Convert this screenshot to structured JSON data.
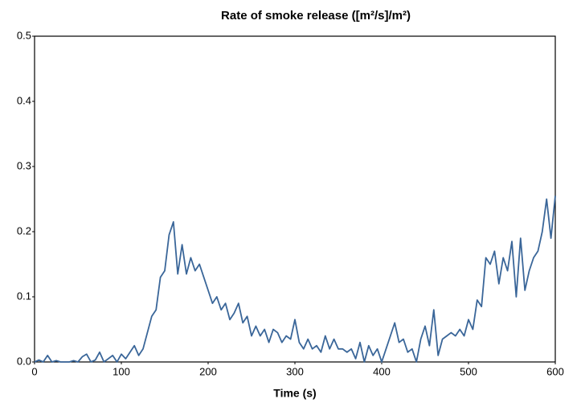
{
  "chart_data": {
    "type": "line",
    "title": "Rate of smoke release ([m²/s]/m²)",
    "x_label": "Time (s)",
    "x": [
      0,
      5,
      10,
      15,
      20,
      25,
      30,
      35,
      40,
      45,
      50,
      55,
      60,
      65,
      70,
      75,
      80,
      85,
      90,
      95,
      100,
      105,
      110,
      115,
      120,
      125,
      130,
      135,
      140,
      145,
      150,
      155,
      160,
      165,
      170,
      175,
      180,
      185,
      190,
      195,
      200,
      205,
      210,
      215,
      220,
      225,
      230,
      235,
      240,
      245,
      250,
      255,
      260,
      265,
      270,
      275,
      280,
      285,
      290,
      295,
      300,
      305,
      310,
      315,
      320,
      325,
      330,
      335,
      340,
      345,
      350,
      355,
      360,
      365,
      370,
      375,
      380,
      385,
      390,
      395,
      400,
      405,
      410,
      415,
      420,
      425,
      430,
      435,
      440,
      445,
      450,
      455,
      460,
      465,
      470,
      475,
      480,
      485,
      490,
      495,
      500,
      505,
      510,
      515,
      520,
      525,
      530,
      535,
      540,
      545,
      550,
      555,
      560,
      565,
      570,
      575,
      580,
      585,
      590,
      595,
      600
    ],
    "series": [
      {
        "color": "#3a6699",
        "values": [
          0.0,
          0.003,
          0.0,
          0.01,
          0.0,
          0.002,
          0.0,
          0.0,
          0.0,
          0.002,
          0.0,
          0.008,
          0.012,
          0.0,
          0.003,
          0.015,
          0.0,
          0.005,
          0.01,
          0.0,
          0.012,
          0.005,
          0.015,
          0.025,
          0.01,
          0.02,
          0.045,
          0.07,
          0.08,
          0.13,
          0.14,
          0.195,
          0.215,
          0.135,
          0.18,
          0.135,
          0.16,
          0.14,
          0.15,
          0.13,
          0.11,
          0.09,
          0.1,
          0.08,
          0.09,
          0.065,
          0.075,
          0.09,
          0.06,
          0.07,
          0.04,
          0.055,
          0.04,
          0.05,
          0.03,
          0.05,
          0.045,
          0.03,
          0.04,
          0.035,
          0.065,
          0.03,
          0.02,
          0.035,
          0.02,
          0.025,
          0.015,
          0.04,
          0.02,
          0.035,
          0.02,
          0.02,
          0.015,
          0.02,
          0.005,
          0.03,
          0.0,
          0.025,
          0.01,
          0.02,
          0.0,
          0.02,
          0.04,
          0.06,
          0.03,
          0.035,
          0.015,
          0.02,
          0.0,
          0.035,
          0.055,
          0.025,
          0.08,
          0.01,
          0.035,
          0.04,
          0.045,
          0.04,
          0.05,
          0.04,
          0.065,
          0.05,
          0.095,
          0.085,
          0.16,
          0.15,
          0.17,
          0.12,
          0.16,
          0.14,
          0.185,
          0.1,
          0.19,
          0.11,
          0.14,
          0.16,
          0.17,
          0.2,
          0.25,
          0.19,
          0.255
        ]
      }
    ],
    "xlim": [
      0,
      600
    ],
    "xticks": [
      0,
      100,
      200,
      300,
      400,
      500,
      600
    ],
    "ylim": [
      0,
      0.5
    ],
    "yticks": [
      {
        "value": 0,
        "label": "0.0"
      },
      0.1,
      0.2,
      0.3,
      0.4,
      0.5
    ]
  }
}
